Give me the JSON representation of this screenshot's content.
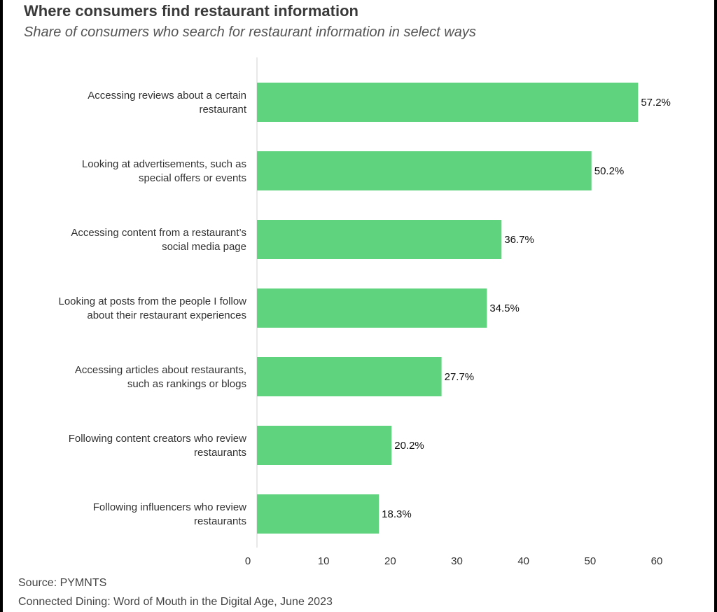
{
  "chart_data": {
    "type": "bar",
    "orientation": "horizontal",
    "title": "Where consumers find restaurant information",
    "subtitle": "Share of consumers who search for restaurant information in select ways",
    "categories": [
      [
        "Accessing reviews about a certain",
        "restaurant"
      ],
      [
        "Looking at advertisements, such as",
        "special offers or events"
      ],
      [
        "Accessing content from a restaurant’s",
        "social media page"
      ],
      [
        "Looking at posts from the people I follow",
        "about their restaurant experiences"
      ],
      [
        "Accessing articles about restaurants,",
        "such as rankings or blogs"
      ],
      [
        "Following content creators who review",
        "restaurants"
      ],
      [
        "Following influencers who review",
        "restaurants"
      ]
    ],
    "values": [
      57.2,
      50.2,
      36.7,
      34.5,
      27.7,
      20.2,
      18.3
    ],
    "value_labels": [
      "57.2%",
      "50.2%",
      "36.7%",
      "34.5%",
      "27.7%",
      "20.2%",
      "18.3%"
    ],
    "xlim": [
      0,
      60
    ],
    "xticks": [
      "0",
      "10",
      "20",
      "30",
      "40",
      "50",
      "60"
    ],
    "xlabel": "",
    "ylabel": "",
    "grid": false,
    "bar_color": "#5fd37d"
  },
  "footer": {
    "source": "Source: PYMNTS",
    "note": "Connected Dining: Word of Mouth in the Digital Age, June 2023"
  }
}
